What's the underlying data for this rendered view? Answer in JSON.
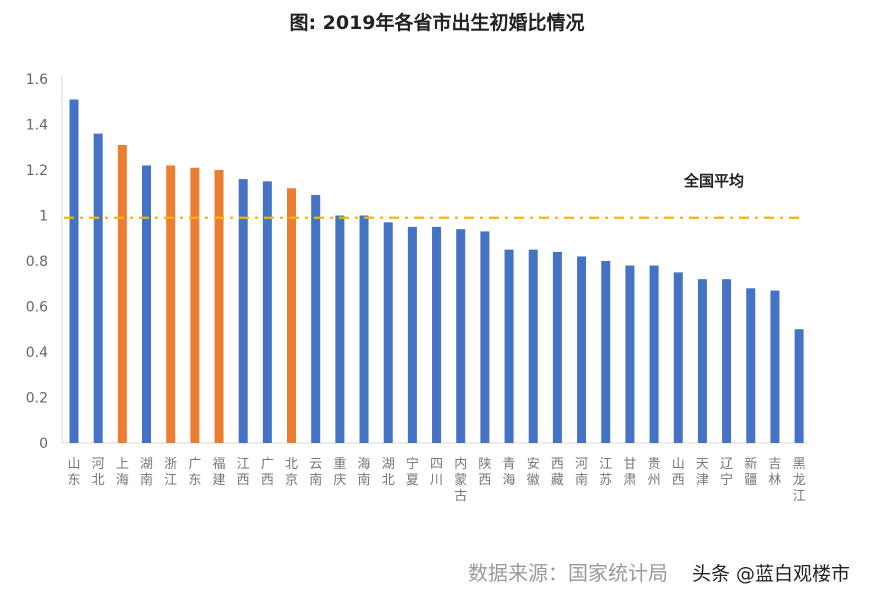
{
  "chart_data": {
    "type": "bar",
    "title": "图: 2019年各省市出生初婚比情况",
    "xlabel": "",
    "ylabel": "",
    "ylim": [
      0,
      1.6
    ],
    "yticks": [
      0,
      0.2,
      0.4,
      0.6,
      0.8,
      1,
      1.2,
      1.4,
      1.6
    ],
    "ytick_labels": [
      "0",
      "0.2",
      "0.4",
      "0.6",
      "0.8",
      "1",
      "1.2",
      "1.4",
      "1.6"
    ],
    "grid": false,
    "categories": [
      "山东",
      "河北",
      "上海",
      "湖南",
      "浙江",
      "广东",
      "福建",
      "江西",
      "广西",
      "北京",
      "云南",
      "重庆",
      "海南",
      "湖北",
      "宁夏",
      "四川",
      "内蒙古",
      "陕西",
      "青海",
      "安徽",
      "西藏",
      "河南",
      "江苏",
      "甘肃",
      "贵州",
      "山西",
      "天津",
      "辽宁",
      "新疆",
      "吉林",
      "黑龙江"
    ],
    "values": [
      1.51,
      1.36,
      1.31,
      1.22,
      1.22,
      1.21,
      1.2,
      1.16,
      1.15,
      1.12,
      1.09,
      1.0,
      1.0,
      0.97,
      0.95,
      0.95,
      0.94,
      0.93,
      0.85,
      0.85,
      0.84,
      0.82,
      0.8,
      0.78,
      0.78,
      0.75,
      0.72,
      0.72,
      0.68,
      0.67,
      0.5
    ],
    "highlighted": [
      "上海",
      "浙江",
      "广东",
      "福建",
      "北京"
    ],
    "reference_line": {
      "label": "全国平均",
      "value": 0.99,
      "color": "#f5b800",
      "style": "dash-dot"
    },
    "colors": {
      "default": "#4472c4",
      "highlight": "#ed7d31"
    }
  },
  "source": "数据来源：国家统计局",
  "watermark": "头条 @蓝白观楼市"
}
